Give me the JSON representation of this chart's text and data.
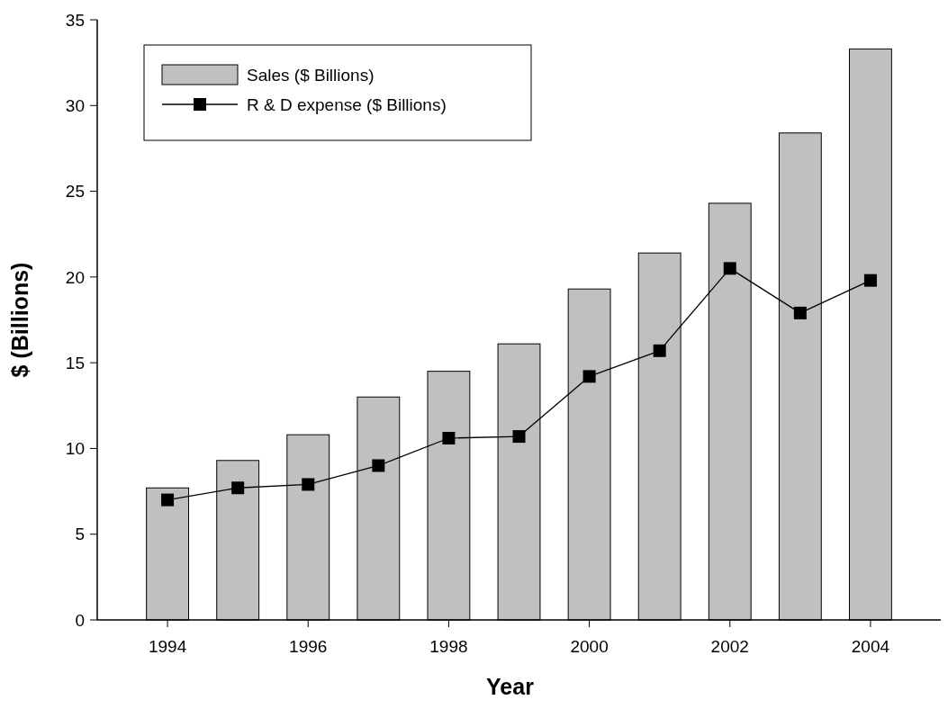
{
  "chart_data": {
    "type": "bar",
    "xlabel": "Year",
    "ylabel": "$ (Billions)",
    "x": [
      1994,
      1995,
      1996,
      1997,
      1998,
      1999,
      2000,
      2001,
      2002,
      2003,
      2004
    ],
    "series": [
      {
        "name": "Sales ($ Billions)",
        "color": "#c0c0c0",
        "values": [
          7.7,
          9.3,
          10.8,
          13.0,
          14.5,
          16.1,
          19.3,
          21.4,
          24.3,
          28.4,
          33.3
        ]
      },
      {
        "name": "R & D expense ($ Billions)",
        "type": "line",
        "color": "#000000",
        "values": [
          7.0,
          7.7,
          7.9,
          9.0,
          10.6,
          10.7,
          14.2,
          15.7,
          20.5,
          17.9,
          19.8
        ]
      }
    ],
    "xlim": [
      1993,
      2005
    ],
    "xticks": [
      1994,
      1996,
      1998,
      2000,
      2002,
      2004
    ],
    "ylim": [
      0,
      35
    ],
    "yticks": [
      0,
      5,
      10,
      15,
      20,
      25,
      30,
      35
    ],
    "legend": "top left",
    "marker": "square",
    "line_style": "solid"
  }
}
